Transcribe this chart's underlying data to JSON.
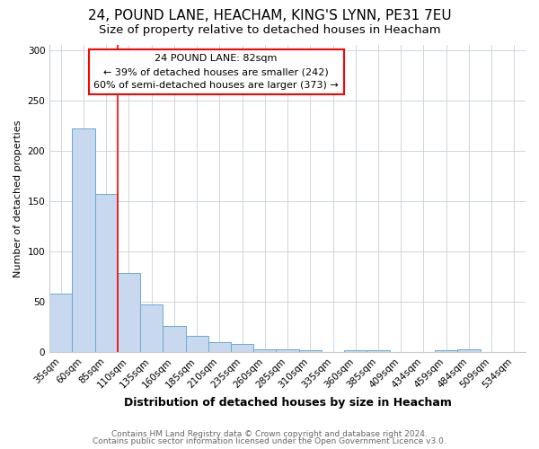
{
  "title1": "24, POUND LANE, HEACHAM, KING'S LYNN, PE31 7EU",
  "title2": "Size of property relative to detached houses in Heacham",
  "xlabel": "Distribution of detached houses by size in Heacham",
  "ylabel": "Number of detached properties",
  "categories": [
    "35sqm",
    "60sqm",
    "85sqm",
    "110sqm",
    "135sqm",
    "160sqm",
    "185sqm",
    "210sqm",
    "235sqm",
    "260sqm",
    "285sqm",
    "310sqm",
    "335sqm",
    "360sqm",
    "385sqm",
    "409sqm",
    "434sqm",
    "459sqm",
    "484sqm",
    "509sqm",
    "534sqm"
  ],
  "values": [
    58,
    222,
    157,
    78,
    47,
    26,
    16,
    10,
    8,
    3,
    3,
    2,
    0,
    2,
    2,
    0,
    0,
    2,
    3,
    0,
    0
  ],
  "bar_color": "#c8d8ee",
  "bar_edge_color": "#6aaad4",
  "red_line_index": 2,
  "annotation_title": "24 POUND LANE: 82sqm",
  "annotation_line1": "← 39% of detached houses are smaller (242)",
  "annotation_line2": "60% of semi-detached houses are larger (373) →",
  "ylim": [
    0,
    305
  ],
  "yticks": [
    0,
    50,
    100,
    150,
    200,
    250,
    300
  ],
  "footnote1": "Contains HM Land Registry data © Crown copyright and database right 2024.",
  "footnote2": "Contains public sector information licensed under the Open Government Licence v3.0.",
  "bg_color": "#ffffff",
  "plot_bg_color": "#ffffff",
  "grid_color": "#c8d0d8",
  "title_fontsize": 11,
  "subtitle_fontsize": 9.5,
  "ylabel_fontsize": 8,
  "xlabel_fontsize": 9,
  "tick_fontsize": 7.5,
  "annot_fontsize": 8,
  "footnote_fontsize": 6.5
}
